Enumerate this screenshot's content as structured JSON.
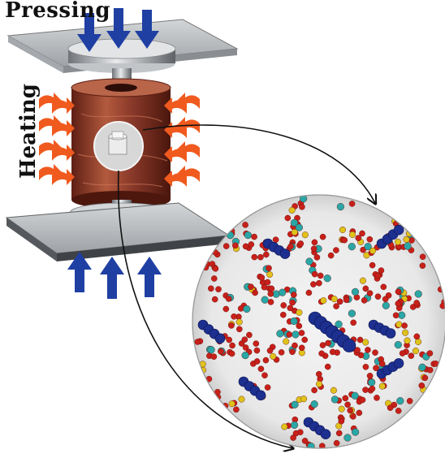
{
  "labels": {
    "pressing": "Pressing",
    "heating": "Heating"
  },
  "colors": {
    "press_arrow": "#1f3fa3",
    "heat_arrow": "#f05a1e",
    "copper": "#8b3a2a",
    "plate": "#b9bcbf",
    "atom_oxygen": "#c8201a",
    "atom_metal": "#2aa6a6",
    "atom_sulfur": "#e0c21c",
    "guest_molecule": "#1d2f8f"
  },
  "icons": [
    "down-arrow-icon",
    "up-arrow-icon",
    "heat-arrow-icon"
  ]
}
